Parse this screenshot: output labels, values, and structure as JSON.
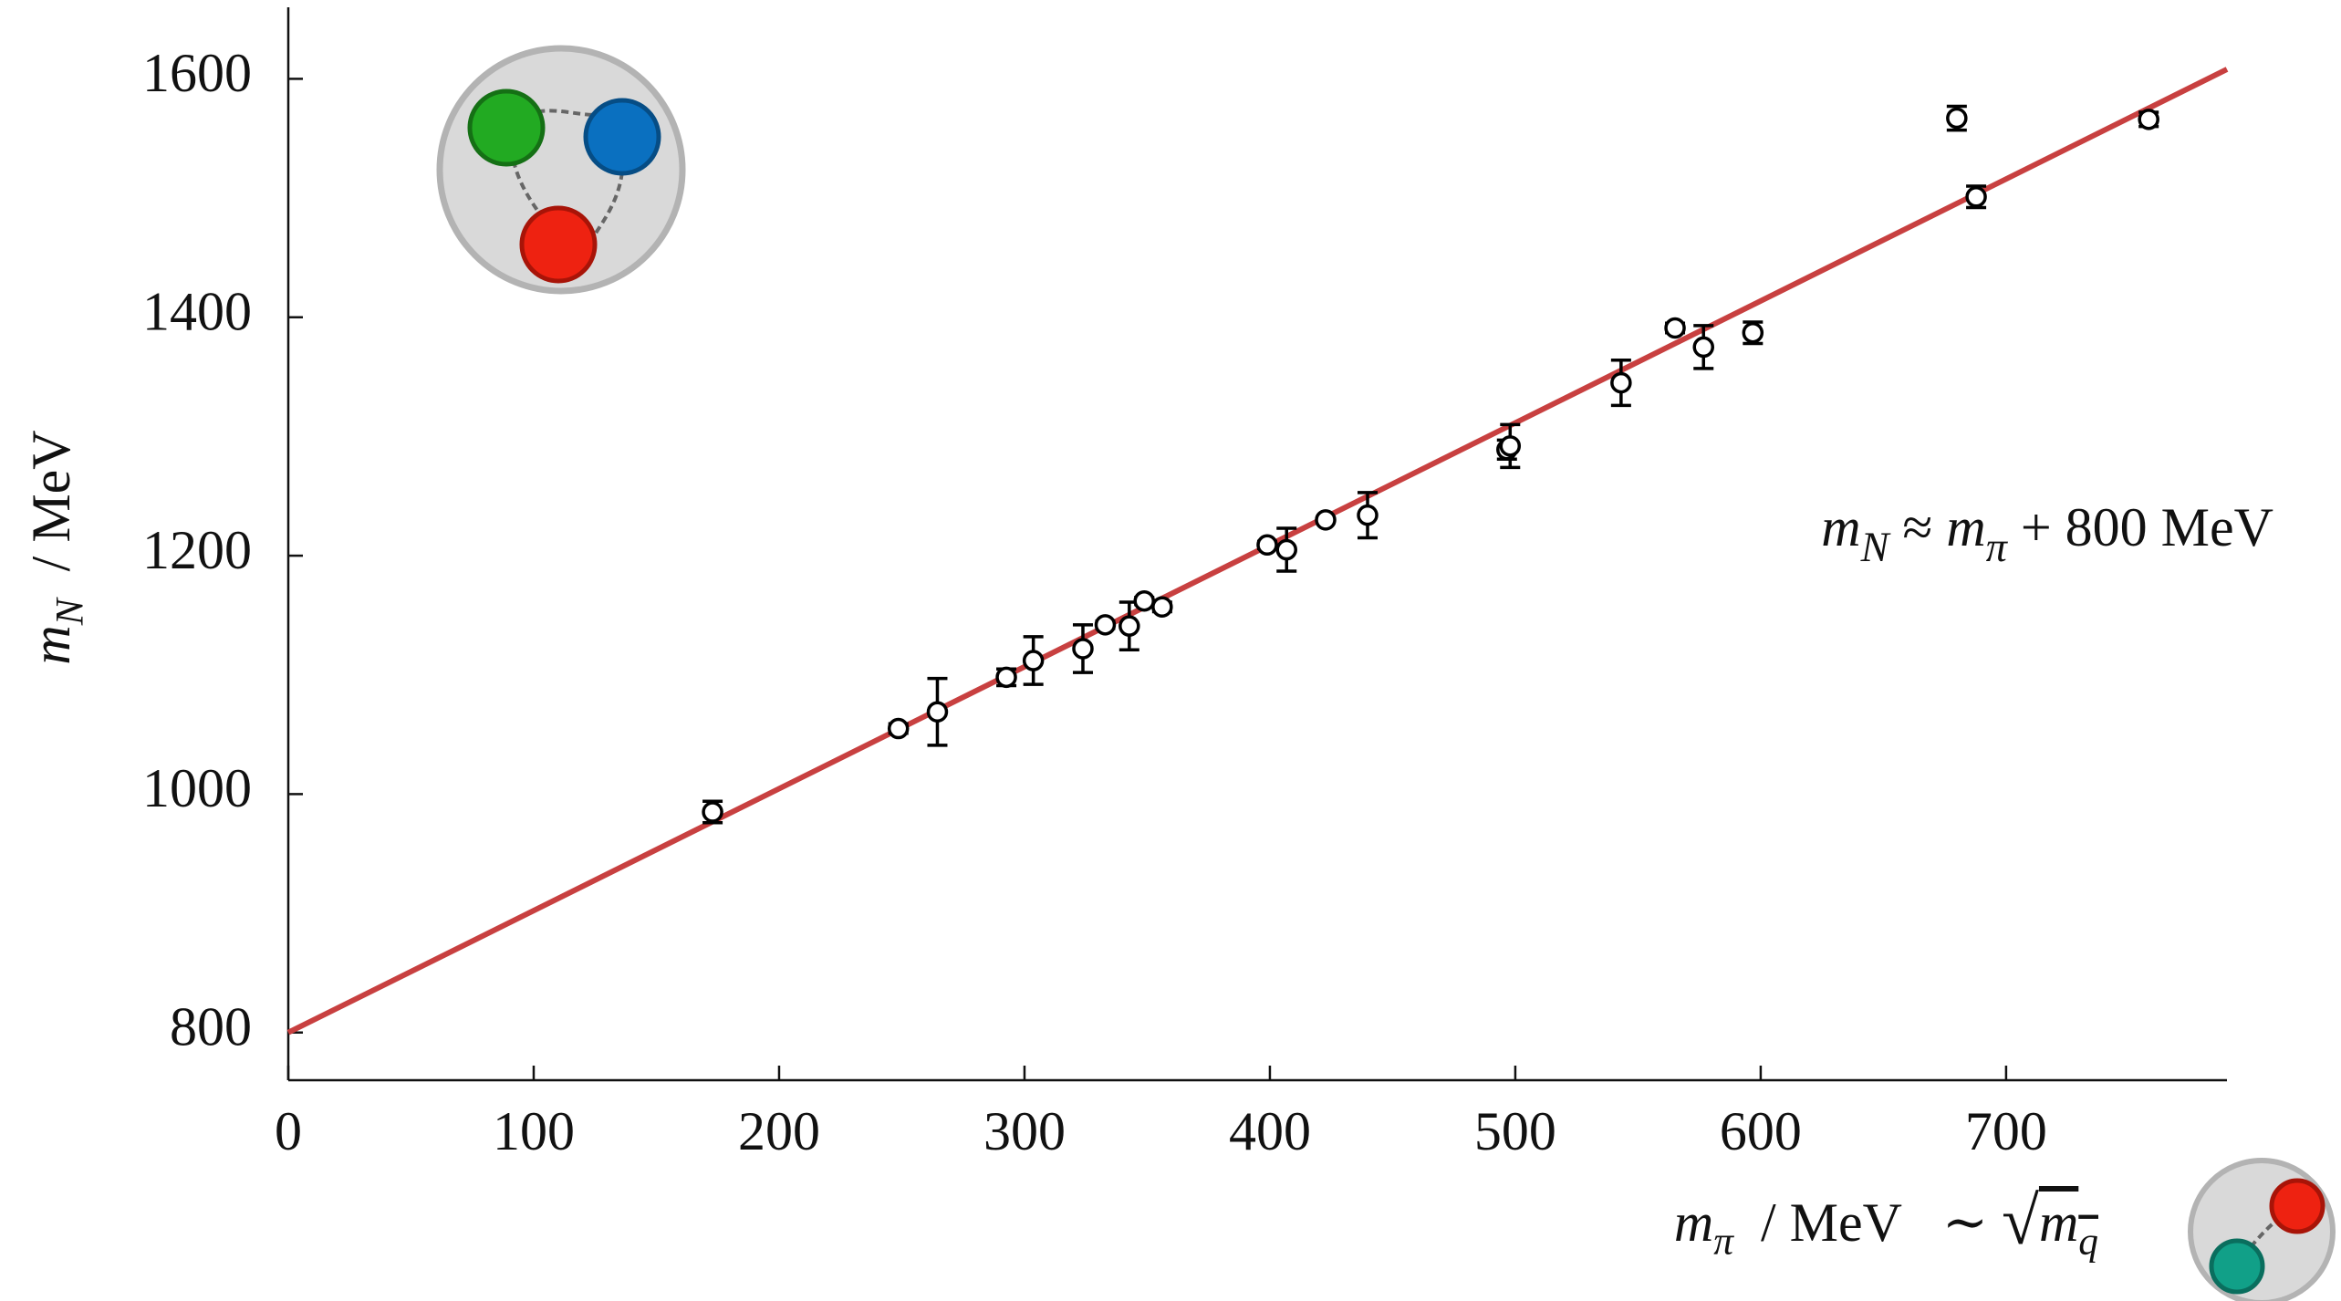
{
  "chart_data": {
    "type": "scatter",
    "xlabel": [
      {
        "text": "m",
        "italic": true
      },
      {
        "text": "π",
        "sub": true,
        "italic": true
      },
      {
        "text": "  / MeV   ∼ "
      },
      {
        "text": "√",
        "big": true
      },
      {
        "text": "m",
        "italic": true,
        "over": true
      },
      {
        "text": "q",
        "sub": true,
        "italic": true,
        "over": true
      }
    ],
    "ylabel": [
      {
        "text": "m",
        "italic": true
      },
      {
        "text": "N",
        "sub": true,
        "italic": true
      },
      {
        "text": "  / MeV"
      }
    ],
    "annotation": [
      {
        "text": "m",
        "italic": true
      },
      {
        "text": "N",
        "sub": true,
        "italic": true
      },
      {
        "text": " ≈ "
      },
      {
        "text": "m",
        "italic": true
      },
      {
        "text": "π",
        "sub": true,
        "italic": true
      },
      {
        "text": " + 800 MeV"
      }
    ],
    "xlim": [
      0,
      790
    ],
    "ylim": [
      760,
      1660
    ],
    "xticks": [
      0,
      100,
      200,
      300,
      400,
      500,
      600,
      700
    ],
    "yticks": [
      800,
      1000,
      1200,
      1400,
      1600
    ],
    "series": [
      {
        "type": "errorbar",
        "color": "#000000",
        "marker_fill": "#ffffff",
        "x": [
          172.9,
          248.6,
          264.5,
          292.6,
          303.6,
          323.8,
          332.9,
          342.7,
          348.8,
          356.1,
          398.9,
          406.8,
          422.7,
          439.8,
          496.6,
          497.9,
          543.1,
          565.1,
          576.7,
          596.8,
          679.9,
          687.8,
          758.1
        ],
        "values": [
          985,
          1055,
          1069,
          1098,
          1112,
          1122,
          1142,
          1141,
          1162,
          1157,
          1209,
          1205,
          1230,
          1234,
          1289,
          1292,
          1345,
          1391,
          1375,
          1387,
          1567,
          1501,
          1566
        ],
        "errors": [
          9,
          4,
          28,
          7,
          20,
          20,
          3,
          20,
          3,
          4,
          3,
          18,
          2,
          19,
          8,
          18,
          19,
          4,
          18,
          9,
          10,
          9,
          6
        ]
      },
      {
        "type": "line",
        "color": "#c84040",
        "x": [
          0,
          790
        ],
        "values": [
          800,
          1608
        ]
      }
    ]
  }
}
